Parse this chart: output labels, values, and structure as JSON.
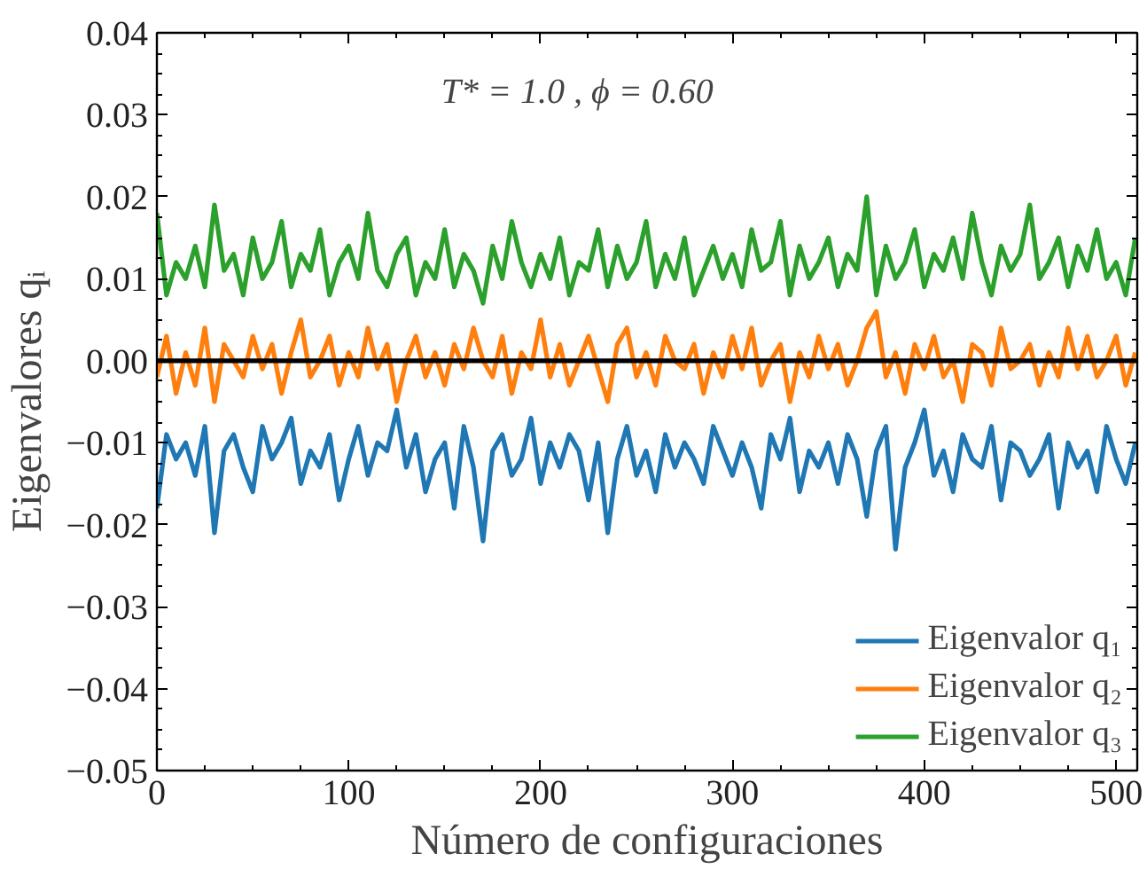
{
  "chart_data": {
    "type": "line",
    "xlabel": "Número de configuraciones",
    "ylabel": "Eigenvalores qᵢ",
    "annotations": [
      "T* = 1.0 , ϕ = 0.60"
    ],
    "xlim": [
      0,
      511
    ],
    "xticks": [
      0,
      100,
      200,
      300,
      400,
      500
    ],
    "ylim": [
      -0.05,
      0.04
    ],
    "yticks": [
      {
        "value": -0.05,
        "label": "−0.05"
      },
      {
        "value": -0.04,
        "label": "−0.04"
      },
      {
        "value": -0.03,
        "label": "−0.03"
      },
      {
        "value": -0.02,
        "label": "−0.02"
      },
      {
        "value": -0.01,
        "label": "−0.01"
      },
      {
        "value": 0,
        "label": "0.00"
      },
      {
        "value": 0.01,
        "label": "0.01"
      },
      {
        "value": 0.02,
        "label": "0.02"
      },
      {
        "value": 0.03,
        "label": "0.03"
      },
      {
        "value": 0.04,
        "label": "0.04"
      }
    ],
    "grid": false,
    "legend": "bottom right",
    "ref_lines": [
      {
        "axis": "y",
        "value": 0,
        "color": "#000000"
      }
    ],
    "x": [
      0,
      5,
      10,
      15,
      20,
      25,
      30,
      35,
      40,
      45,
      50,
      55,
      60,
      65,
      70,
      75,
      80,
      85,
      90,
      95,
      100,
      105,
      110,
      115,
      120,
      125,
      130,
      135,
      140,
      145,
      150,
      155,
      160,
      165,
      170,
      175,
      180,
      185,
      190,
      195,
      200,
      205,
      210,
      215,
      220,
      225,
      230,
      235,
      240,
      245,
      250,
      255,
      260,
      265,
      270,
      275,
      280,
      285,
      290,
      295,
      300,
      305,
      310,
      315,
      320,
      325,
      330,
      335,
      340,
      345,
      350,
      355,
      360,
      365,
      370,
      375,
      380,
      385,
      390,
      395,
      400,
      405,
      410,
      415,
      420,
      425,
      430,
      435,
      440,
      445,
      450,
      455,
      460,
      465,
      470,
      475,
      480,
      485,
      490,
      495,
      500,
      505,
      510
    ],
    "series": [
      {
        "name": "Eigenvalor q₁",
        "color": "#1f77b4",
        "values": [
          -0.018,
          -0.009,
          -0.012,
          -0.01,
          -0.014,
          -0.008,
          -0.021,
          -0.011,
          -0.009,
          -0.013,
          -0.016,
          -0.008,
          -0.012,
          -0.01,
          -0.007,
          -0.015,
          -0.011,
          -0.013,
          -0.009,
          -0.017,
          -0.012,
          -0.008,
          -0.014,
          -0.01,
          -0.011,
          -0.006,
          -0.013,
          -0.009,
          -0.016,
          -0.012,
          -0.01,
          -0.018,
          -0.008,
          -0.013,
          -0.022,
          -0.011,
          -0.009,
          -0.014,
          -0.012,
          -0.007,
          -0.015,
          -0.01,
          -0.013,
          -0.009,
          -0.011,
          -0.017,
          -0.01,
          -0.021,
          -0.012,
          -0.008,
          -0.014,
          -0.011,
          -0.016,
          -0.009,
          -0.013,
          -0.01,
          -0.012,
          -0.015,
          -0.008,
          -0.011,
          -0.014,
          -0.01,
          -0.013,
          -0.018,
          -0.009,
          -0.012,
          -0.007,
          -0.016,
          -0.011,
          -0.013,
          -0.01,
          -0.015,
          -0.009,
          -0.012,
          -0.019,
          -0.011,
          -0.008,
          -0.023,
          -0.013,
          -0.01,
          -0.006,
          -0.014,
          -0.011,
          -0.016,
          -0.009,
          -0.012,
          -0.013,
          -0.008,
          -0.017,
          -0.01,
          -0.011,
          -0.014,
          -0.012,
          -0.009,
          -0.018,
          -0.01,
          -0.013,
          -0.011,
          -0.016,
          -0.008,
          -0.012,
          -0.015,
          -0.01
        ]
      },
      {
        "name": "Eigenvalor q₂",
        "color": "#ff7f0e",
        "values": [
          -0.002,
          0.003,
          -0.004,
          0.001,
          -0.003,
          0.004,
          -0.005,
          0.002,
          0.0,
          -0.002,
          0.003,
          -0.001,
          0.002,
          -0.004,
          0.001,
          0.005,
          -0.002,
          0.0,
          0.003,
          -0.003,
          0.001,
          -0.002,
          0.004,
          -0.001,
          0.002,
          -0.005,
          0.0,
          0.003,
          -0.002,
          0.001,
          -0.003,
          0.002,
          -0.001,
          0.004,
          0.0,
          -0.002,
          0.003,
          -0.004,
          0.001,
          -0.001,
          0.005,
          -0.002,
          0.002,
          -0.003,
          0.0,
          0.003,
          -0.001,
          -0.005,
          0.002,
          0.004,
          -0.002,
          0.001,
          -0.003,
          0.003,
          0.0,
          -0.001,
          0.002,
          -0.004,
          0.001,
          -0.002,
          0.003,
          -0.001,
          0.004,
          -0.003,
          0.0,
          0.002,
          -0.005,
          0.001,
          -0.002,
          0.003,
          -0.001,
          0.002,
          -0.003,
          0.0,
          0.004,
          0.006,
          -0.002,
          0.001,
          -0.004,
          0.002,
          -0.001,
          0.003,
          -0.002,
          0.0,
          -0.005,
          0.002,
          0.001,
          -0.003,
          0.004,
          -0.001,
          0.0,
          0.002,
          -0.003,
          0.001,
          -0.002,
          0.004,
          -0.001,
          0.003,
          -0.002,
          0.0,
          0.003,
          -0.003,
          0.001
        ]
      },
      {
        "name": "Eigenvalor q₃",
        "color": "#2ca02c",
        "values": [
          0.018,
          0.008,
          0.012,
          0.01,
          0.014,
          0.009,
          0.019,
          0.011,
          0.013,
          0.008,
          0.015,
          0.01,
          0.012,
          0.017,
          0.009,
          0.013,
          0.011,
          0.016,
          0.008,
          0.012,
          0.014,
          0.01,
          0.018,
          0.011,
          0.009,
          0.013,
          0.015,
          0.008,
          0.012,
          0.01,
          0.016,
          0.009,
          0.013,
          0.011,
          0.007,
          0.014,
          0.01,
          0.017,
          0.012,
          0.009,
          0.013,
          0.01,
          0.015,
          0.008,
          0.012,
          0.011,
          0.016,
          0.009,
          0.014,
          0.01,
          0.012,
          0.017,
          0.009,
          0.013,
          0.01,
          0.015,
          0.008,
          0.011,
          0.014,
          0.01,
          0.013,
          0.009,
          0.016,
          0.011,
          0.012,
          0.017,
          0.008,
          0.014,
          0.01,
          0.012,
          0.015,
          0.009,
          0.013,
          0.011,
          0.02,
          0.008,
          0.014,
          0.01,
          0.012,
          0.016,
          0.009,
          0.013,
          0.011,
          0.015,
          0.01,
          0.018,
          0.012,
          0.008,
          0.014,
          0.011,
          0.013,
          0.019,
          0.01,
          0.012,
          0.015,
          0.009,
          0.014,
          0.011,
          0.016,
          0.01,
          0.012,
          0.008,
          0.015
        ]
      }
    ]
  }
}
